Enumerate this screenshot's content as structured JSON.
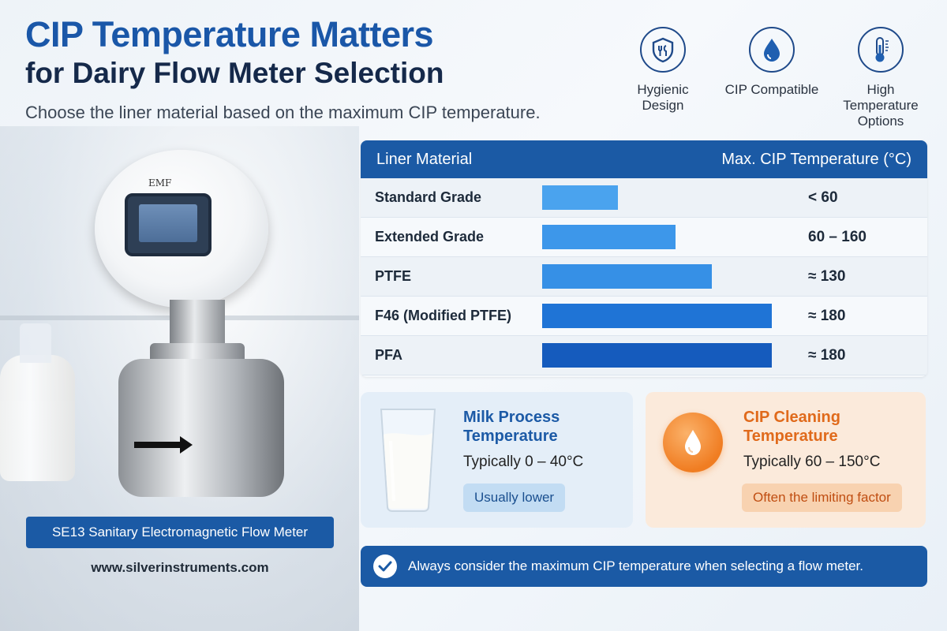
{
  "header": {
    "title_line1": "CIP Temperature Matters",
    "title_line2": "for Dairy Flow Meter Selection",
    "subtitle": "Choose the liner material based on the maximum CIP temperature."
  },
  "features": [
    {
      "icon": "hygienic-shield-icon",
      "label": "Hygienic Design"
    },
    {
      "icon": "water-drop-icon",
      "label": "CIP Compatible"
    },
    {
      "icon": "thermometer-icon",
      "label": "High Temperature Options"
    }
  ],
  "product": {
    "display_brand": "EMF",
    "name": "SE13 Sanitary Electromagnetic Flow Meter",
    "website": "www.silverinstruments.com"
  },
  "table": {
    "col_material": "Liner Material",
    "col_temp": "Max. CIP Temperature (°C)",
    "rows": [
      {
        "material": "Standard Grade",
        "temp": "< 60",
        "bar_fraction": 0.33,
        "color": "#4aa3ee"
      },
      {
        "material": "Extended Grade",
        "temp": "60 – 160",
        "bar_fraction": 0.58,
        "color": "#3d97ea"
      },
      {
        "material": "PTFE",
        "temp": "≈ 130",
        "bar_fraction": 0.74,
        "color": "#3690e6"
      },
      {
        "material": "F46 (Modified PTFE)",
        "temp": "≈ 180",
        "bar_fraction": 1.0,
        "color": "#1f74d6"
      },
      {
        "material": "PFA",
        "temp": "≈ 180",
        "bar_fraction": 1.0,
        "color": "#155bbd"
      }
    ]
  },
  "cards": {
    "milk": {
      "title_line1": "Milk Process",
      "title_line2": "Temperature",
      "range": "Typically 0 – 40°C",
      "note": "Usually lower"
    },
    "cip": {
      "title_line1": "CIP Cleaning",
      "title_line2": "Temperature",
      "range": "Typically 60 – 150°C",
      "note": "Often the limiting factor"
    }
  },
  "banner": {
    "text": "Always consider the maximum CIP temperature when selecting a flow meter."
  },
  "colors": {
    "brand_blue": "#1b5aa5",
    "title_blue": "#1a57a8",
    "cip_orange": "#e06a1b"
  }
}
